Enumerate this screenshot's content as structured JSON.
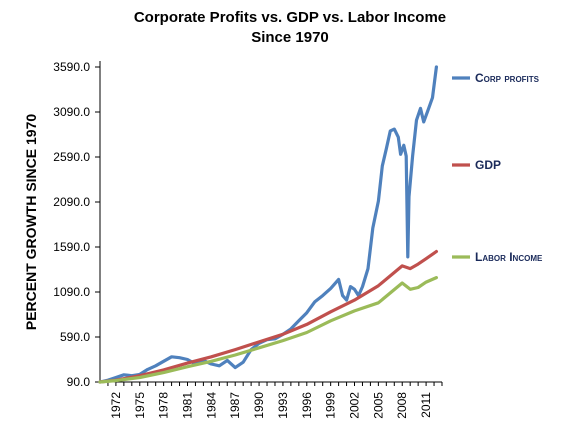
{
  "chart_data": {
    "type": "line",
    "title": "Corporate Profits vs. GDP vs. Labor Income",
    "subtitle": "Since 1970",
    "xlabel": "",
    "ylabel": "PERCENT GROWTH SINCE 1970",
    "ylim": [
      90,
      3590
    ],
    "xlim": [
      1970,
      2013
    ],
    "y_ticks": [
      "3590.0",
      "3090.0",
      "2590.0",
      "2090.0",
      "1590.0",
      "1090.0",
      "590.0",
      "90.0"
    ],
    "y_tick_values": [
      3590,
      3090,
      2590,
      2090,
      1590,
      1090,
      590,
      90
    ],
    "x_ticks": [
      "1972",
      "1975",
      "1978",
      "1981",
      "1984",
      "1987",
      "1990",
      "1993",
      "1996",
      "1999",
      "2002",
      "2005",
      "2008",
      "2011"
    ],
    "x_tick_values": [
      1972,
      1975,
      1978,
      1981,
      1984,
      1987,
      1990,
      1993,
      1996,
      1999,
      2002,
      2005,
      2008,
      2011
    ],
    "grid": false,
    "legend_position": "right",
    "series": [
      {
        "name": "Corp profits",
        "color": "#4f81bd",
        "points": [
          [
            1970,
            90
          ],
          [
            1971,
            110
          ],
          [
            1972,
            140
          ],
          [
            1973,
            170
          ],
          [
            1974,
            160
          ],
          [
            1975,
            175
          ],
          [
            1976,
            230
          ],
          [
            1977,
            270
          ],
          [
            1978,
            320
          ],
          [
            1979,
            370
          ],
          [
            1980,
            360
          ],
          [
            1981,
            340
          ],
          [
            1982,
            290
          ],
          [
            1983,
            330
          ],
          [
            1984,
            290
          ],
          [
            1985,
            270
          ],
          [
            1986,
            330
          ],
          [
            1987,
            250
          ],
          [
            1988,
            310
          ],
          [
            1989,
            450
          ],
          [
            1990,
            520
          ],
          [
            1991,
            560
          ],
          [
            1992,
            570
          ],
          [
            1993,
            620
          ],
          [
            1994,
            680
          ],
          [
            1995,
            770
          ],
          [
            1996,
            860
          ],
          [
            1997,
            980
          ],
          [
            1998,
            1050
          ],
          [
            1999,
            1130
          ],
          [
            2000,
            1230
          ],
          [
            2000.5,
            1050
          ],
          [
            2001,
            1000
          ],
          [
            2001.5,
            1150
          ],
          [
            2002,
            1120
          ],
          [
            2002.5,
            1050
          ],
          [
            2003,
            1150
          ],
          [
            2003.7,
            1350
          ],
          [
            2004.3,
            1800
          ],
          [
            2005,
            2100
          ],
          [
            2005.5,
            2490
          ],
          [
            2006,
            2680
          ],
          [
            2006.5,
            2880
          ],
          [
            2007,
            2900
          ],
          [
            2007.5,
            2810
          ],
          [
            2007.8,
            2620
          ],
          [
            2008.2,
            2720
          ],
          [
            2008.5,
            2600
          ],
          [
            2008.7,
            1480
          ],
          [
            2008.85,
            2150
          ],
          [
            2009.3,
            2600
          ],
          [
            2009.8,
            3000
          ],
          [
            2010.3,
            3130
          ],
          [
            2010.7,
            2980
          ],
          [
            2011.2,
            3100
          ],
          [
            2011.8,
            3250
          ],
          [
            2012.3,
            3590
          ]
        ]
      },
      {
        "name": "GDP",
        "color": "#c0504d",
        "points": [
          [
            1970,
            90
          ],
          [
            1972,
            110
          ],
          [
            1975,
            160
          ],
          [
            1978,
            225
          ],
          [
            1981,
            300
          ],
          [
            1984,
            370
          ],
          [
            1987,
            450
          ],
          [
            1990,
            535
          ],
          [
            1993,
            620
          ],
          [
            1996,
            730
          ],
          [
            1999,
            870
          ],
          [
            2002,
            1000
          ],
          [
            2005,
            1160
          ],
          [
            2008,
            1380
          ],
          [
            2009,
            1350
          ],
          [
            2010,
            1400
          ],
          [
            2011,
            1460
          ],
          [
            2012.3,
            1540
          ]
        ]
      },
      {
        "name": "Labor Income",
        "color": "#9bbb59",
        "points": [
          [
            1970,
            90
          ],
          [
            1972,
            105
          ],
          [
            1975,
            140
          ],
          [
            1978,
            195
          ],
          [
            1981,
            260
          ],
          [
            1984,
            320
          ],
          [
            1987,
            390
          ],
          [
            1990,
            470
          ],
          [
            1993,
            550
          ],
          [
            1996,
            640
          ],
          [
            1999,
            770
          ],
          [
            2002,
            880
          ],
          [
            2005,
            970
          ],
          [
            2008,
            1190
          ],
          [
            2009,
            1120
          ],
          [
            2010,
            1140
          ],
          [
            2011,
            1200
          ],
          [
            2012.3,
            1250
          ]
        ]
      }
    ]
  }
}
